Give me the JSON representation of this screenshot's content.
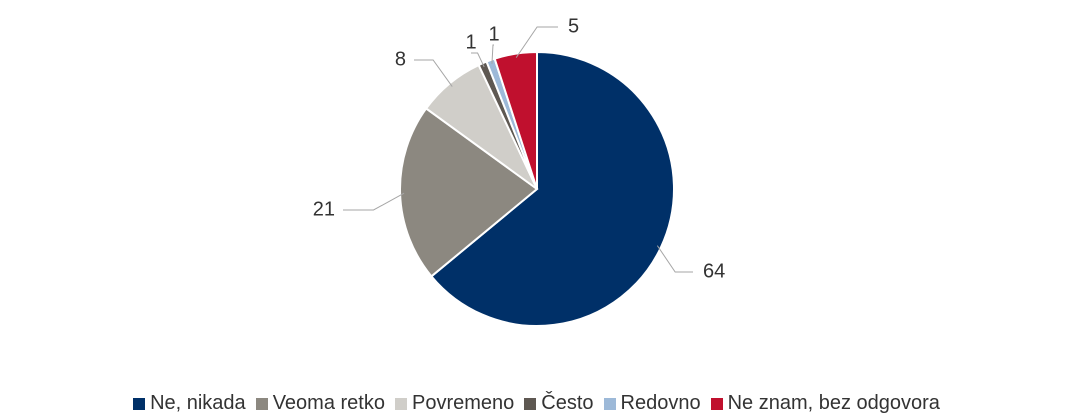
{
  "chart_data": {
    "type": "pie",
    "categories": [
      "Ne, nikada",
      "Veoma retko",
      "Povremeno",
      "Često",
      "Redovno",
      "Ne znam, bez odgovora"
    ],
    "values": [
      64,
      21,
      8,
      1,
      1,
      5
    ],
    "colors": [
      "#003068",
      "#8c8880",
      "#d0cec9",
      "#5e5852",
      "#9db9d8",
      "#c0102e"
    ],
    "legend": "bottom"
  }
}
